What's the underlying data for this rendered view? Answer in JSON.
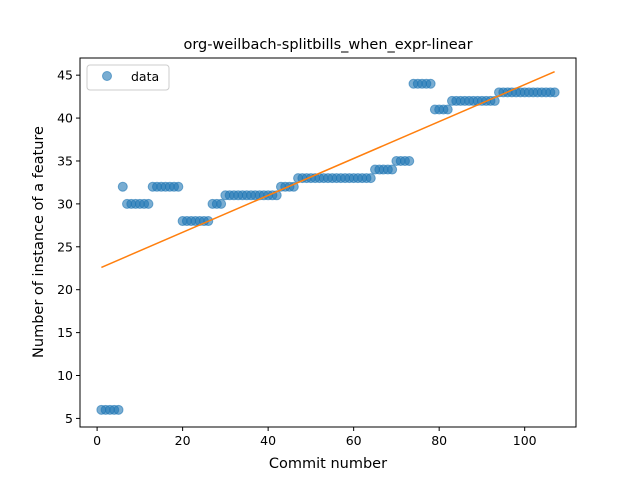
{
  "chart_data": {
    "type": "scatter",
    "title": "org-weilbach-splitbills_when_expr-linear",
    "xlabel": "Commit number",
    "ylabel": "Number of instance of a feature",
    "xlim": [
      -4,
      112
    ],
    "ylim": [
      4,
      47
    ],
    "xticks": [
      0,
      20,
      40,
      60,
      80,
      100
    ],
    "yticks": [
      5,
      10,
      15,
      20,
      25,
      30,
      35,
      40,
      45
    ],
    "legend": {
      "position": "top-left",
      "entries": [
        "data"
      ]
    },
    "grid": false,
    "colors": {
      "data": "#1f77b4",
      "fit": "#ff7f0e"
    },
    "series": [
      {
        "name": "data",
        "kind": "scatter",
        "x": [
          1,
          2,
          3,
          4,
          5,
          6,
          7,
          8,
          9,
          10,
          11,
          12,
          13,
          14,
          15,
          16,
          17,
          18,
          19,
          20,
          21,
          22,
          23,
          24,
          25,
          26,
          27,
          28,
          29,
          30,
          31,
          32,
          33,
          34,
          35,
          36,
          37,
          38,
          39,
          40,
          41,
          42,
          43,
          44,
          45,
          46,
          47,
          48,
          49,
          50,
          51,
          52,
          53,
          54,
          55,
          56,
          57,
          58,
          59,
          60,
          61,
          62,
          63,
          64,
          65,
          66,
          67,
          68,
          69,
          70,
          71,
          72,
          73,
          74,
          75,
          76,
          77,
          78,
          79,
          80,
          81,
          82,
          83,
          84,
          85,
          86,
          87,
          88,
          89,
          90,
          91,
          92,
          93,
          94,
          95,
          96,
          97,
          98,
          99,
          100,
          101,
          102,
          103,
          104,
          105,
          106,
          107
        ],
        "y": [
          6,
          6,
          6,
          6,
          6,
          32,
          30,
          30,
          30,
          30,
          30,
          30,
          32,
          32,
          32,
          32,
          32,
          32,
          32,
          28,
          28,
          28,
          28,
          28,
          28,
          28,
          30,
          30,
          30,
          31,
          31,
          31,
          31,
          31,
          31,
          31,
          31,
          31,
          31,
          31,
          31,
          31,
          32,
          32,
          32,
          32,
          33,
          33,
          33,
          33,
          33,
          33,
          33,
          33,
          33,
          33,
          33,
          33,
          33,
          33,
          33,
          33,
          33,
          33,
          34,
          34,
          34,
          34,
          34,
          35,
          35,
          35,
          35,
          44,
          44,
          44,
          44,
          44,
          41,
          41,
          41,
          41,
          42,
          42,
          42,
          42,
          42,
          42,
          42,
          42,
          42,
          42,
          42,
          43,
          43,
          43,
          43,
          43,
          43,
          43,
          43,
          43,
          43,
          43,
          43,
          43,
          43
        ]
      },
      {
        "kind": "line",
        "x": [
          1,
          107
        ],
        "y": [
          22.6,
          45.4
        ]
      }
    ]
  }
}
